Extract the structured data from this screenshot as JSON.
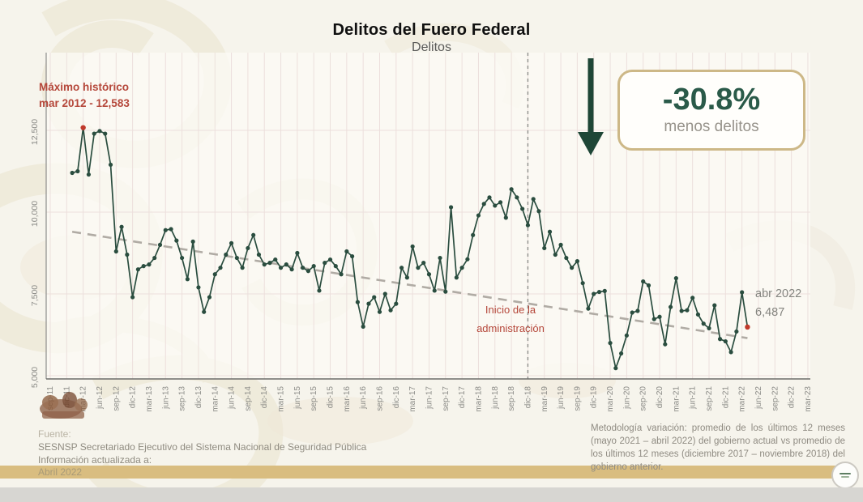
{
  "page": {
    "title": "Delitos del Fuero Federal",
    "subtitle": "Delitos"
  },
  "annotations": {
    "max_line1": "Máximo histórico",
    "max_line2": "mar 2012 - 12,583",
    "admin_line1": "Inicio de la",
    "admin_line2": "administración",
    "last_point_label": "abr 2022",
    "last_point_value": "6,487",
    "variation_value": "-30.8%",
    "variation_label": "menos delitos"
  },
  "footer": {
    "source_label": "Fuente:",
    "source_name": "SESNSP Secretariado Ejecutivo del Sistema Nacional de Seguridad Pública",
    "updated_label": "Información actualizada a:",
    "updated_value": "Abril 2022",
    "methodology": "Metodología variación: promedio de los últimos 12 meses (mayo 2021 – abril 2022) del gobierno actual vs promedio de los últimos 12 meses (diciembre 2017 – noviembre 2018) del gobierno anterior."
  },
  "colors": {
    "background": "#f6f4ec",
    "line": "#2a4d3f",
    "highlight_red": "#c0392b",
    "annotation_red": "#b5473a",
    "trend_gray": "#b0aba4",
    "grid": "#ecdfdc",
    "band_gold": "#d9bd80",
    "box_border_tan": "#cdb887",
    "green_text": "#2a5a49",
    "arrow_green": "#1e4636"
  },
  "chart_data": {
    "type": "line",
    "title": "Delitos del Fuero Federal",
    "subtitle": "Delitos",
    "grid": true,
    "x_tick_labels": [
      "sep-11",
      "dic-11",
      "mar-12",
      "jun-12",
      "sep-12",
      "dic-12",
      "mar-13",
      "jun-13",
      "sep-13",
      "dic-13",
      "mar-14",
      "jun-14",
      "sep-14",
      "dic-14",
      "mar-15",
      "jun-15",
      "sep-15",
      "dic-15",
      "mar-16",
      "jun-16",
      "sep-16",
      "dic-16",
      "mar-17",
      "jun-17",
      "sep-17",
      "dic-17",
      "mar-18",
      "jun-18",
      "sep-18",
      "dic-18",
      "mar-19",
      "jun-19",
      "sep-19",
      "dic-19",
      "mar-20",
      "jun-20",
      "sep-20",
      "dic-20",
      "mar-21",
      "jun-21",
      "sep-21",
      "dic-21",
      "mar-22",
      "jun-22",
      "sep-22",
      "dic-22",
      "mar-23"
    ],
    "y_tick_values": [
      5000,
      7500,
      10000,
      12500
    ],
    "y_tick_labels": [
      "5,000",
      "7,500",
      "10,000",
      "12,500"
    ],
    "ylim": [
      4900,
      14900
    ],
    "first_point_month": "ene-12",
    "last_point_month": "abr-22",
    "values": [
      11200,
      11250,
      12583,
      11150,
      12400,
      12480,
      12400,
      11450,
      8800,
      9550,
      8700,
      7400,
      8250,
      8350,
      8400,
      8600,
      9000,
      9450,
      9480,
      9130,
      8600,
      7950,
      9100,
      7700,
      6950,
      7400,
      8100,
      8300,
      8700,
      9050,
      8600,
      8300,
      8900,
      9300,
      8700,
      8400,
      8450,
      8550,
      8300,
      8400,
      8250,
      8750,
      8300,
      8200,
      8350,
      7600,
      8450,
      8550,
      8350,
      8100,
      8800,
      8650,
      7250,
      6500,
      7200,
      7400,
      6950,
      7500,
      7000,
      7200,
      8300,
      8000,
      8950,
      8300,
      8450,
      8100,
      7600,
      8600,
      7570,
      10150,
      8000,
      8300,
      8560,
      9300,
      9900,
      10250,
      10450,
      10200,
      10300,
      9830,
      10700,
      10450,
      10100,
      9600,
      10400,
      10030,
      8900,
      9400,
      8700,
      9000,
      8600,
      8300,
      8500,
      7830,
      7050,
      7500,
      7560,
      7590,
      6000,
      5230,
      5680,
      6230,
      6930,
      6980,
      7880,
      7760,
      6730,
      6800,
      5960,
      7100,
      7980,
      6980,
      7000,
      7380,
      6870,
      6590,
      6450,
      7150,
      6120,
      6050,
      5720,
      6350,
      7550,
      6487
    ],
    "highlights": [
      {
        "month": "mar-12",
        "index": 2,
        "value": 12583,
        "note": "Máximo histórico"
      },
      {
        "month": "abr-22",
        "index": 123,
        "value": 6487,
        "note": "Último dato"
      }
    ],
    "trend_line": {
      "style": "dashed",
      "from_month": "ene-12",
      "from_value": 9400,
      "to_month": "abr-22",
      "to_value": 6150
    },
    "vline": {
      "month": "dic-18",
      "style": "dashed",
      "label": "Inicio de la administración"
    }
  }
}
